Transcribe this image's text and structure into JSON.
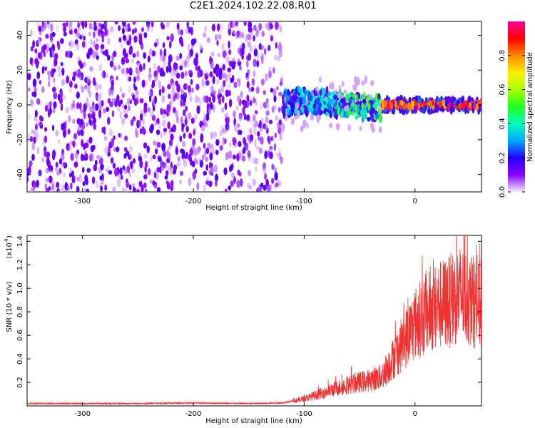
{
  "title": "C2E1.2024.102.22.08.R01",
  "chart_data": [
    {
      "type": "heatmap",
      "xlabel": "Height of straight line (km)",
      "ylabel": "Frequency (Hz)",
      "xlim": [
        -350,
        60
      ],
      "ylim": [
        -50,
        48
      ],
      "x_ticks": [
        -300,
        -200,
        -100,
        0
      ],
      "y_ticks": [
        -40,
        -20,
        0,
        20,
        40
      ],
      "colorbar": {
        "label": "Normalized spectral amplitude",
        "range": [
          0.0,
          1.0
        ],
        "ticks": [
          0.0,
          0.2,
          0.4,
          0.6,
          0.8
        ]
      },
      "description_points": [
        {
          "x_range": [
            -350,
            -120
          ],
          "y_range": [
            -50,
            48
          ],
          "amplitude": 0.1,
          "pattern": "broadband speckle"
        },
        {
          "x_range": [
            -220,
            -100
          ],
          "y_range": [
            -8,
            8
          ],
          "amplitude": 0.15
        },
        {
          "x_range": [
            -140,
            -30
          ],
          "y_range": [
            -8,
            10
          ],
          "amplitude": 0.35
        },
        {
          "x_range": [
            -30,
            60
          ],
          "y_range": [
            -2,
            2
          ],
          "amplitude": 0.9
        }
      ],
      "grid": false
    },
    {
      "type": "line",
      "xlabel": "Height of straight line (km)",
      "ylabel": "SNR (10 * v/v)",
      "scale_label": "(x10",
      "scale_exponent": "4",
      "xlim": [
        -350,
        60
      ],
      "ylim": [
        0,
        1.45
      ],
      "x_ticks": [
        -300,
        -200,
        -100,
        0
      ],
      "y_ticks": [
        0.2,
        0.4,
        0.6,
        0.8,
        1.0,
        1.2,
        1.4
      ],
      "series": [
        {
          "color": "#ee3333",
          "x": [
            -350,
            -300,
            -250,
            -200,
            -150,
            -120,
            -100,
            -80,
            -60,
            -50,
            -40,
            -30,
            -20,
            -10,
            0,
            10,
            20,
            30,
            40,
            50,
            60
          ],
          "values": [
            0.02,
            0.02,
            0.02,
            0.025,
            0.02,
            0.025,
            0.06,
            0.12,
            0.18,
            0.2,
            0.22,
            0.25,
            0.4,
            0.55,
            0.7,
            0.78,
            0.85,
            0.88,
            0.95,
            0.9,
            0.85
          ]
        }
      ],
      "grid": false
    }
  ],
  "colors": {
    "line": "#ee3333",
    "colormap": [
      "#ffffff",
      "#e8d6ff",
      "#7700ff",
      "#1a00ff",
      "#00bbff",
      "#00ffaa",
      "#66ff00",
      "#ffee00",
      "#ff8800",
      "#ff0000",
      "#ff0080"
    ]
  }
}
